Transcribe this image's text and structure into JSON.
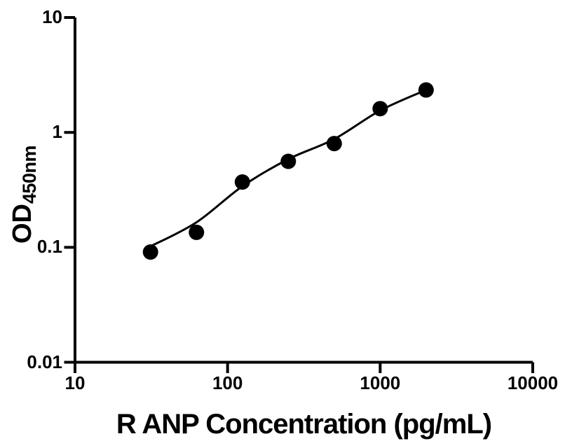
{
  "chart_data": {
    "type": "scatter",
    "title": "",
    "xlabel": "R ANP Concentration (pg/mL)",
    "ylabel": "OD",
    "ylabel_subscript": "450nm",
    "x_scale": "log",
    "y_scale": "log",
    "xlim": [
      10,
      10000
    ],
    "ylim": [
      0.01,
      10
    ],
    "x_tick_values": [
      10,
      100,
      1000,
      10000
    ],
    "x_tick_labels": [
      "10",
      "100",
      "1000",
      "10000"
    ],
    "y_tick_values": [
      0.01,
      0.1,
      1,
      10
    ],
    "y_tick_labels": [
      "0.01",
      "0.1",
      "1",
      "10"
    ],
    "grid": false,
    "legend": false,
    "colors": {
      "ink": "#000000",
      "background": "#ffffff"
    },
    "series": [
      {
        "name": "standard-points",
        "type": "scatter",
        "marker": "filled-circle",
        "color": "#000000",
        "x": [
          31.25,
          62.5,
          125,
          250,
          500,
          1000,
          2000
        ],
        "y": [
          0.091,
          0.135,
          0.37,
          0.56,
          0.8,
          1.61,
          2.34
        ]
      },
      {
        "name": "fit-curve",
        "type": "line",
        "color": "#000000",
        "x": [
          31.25,
          62.5,
          125,
          250,
          500,
          1000,
          2000
        ],
        "y": [
          0.102,
          0.165,
          0.34,
          0.585,
          0.875,
          1.55,
          2.34
        ]
      }
    ]
  }
}
